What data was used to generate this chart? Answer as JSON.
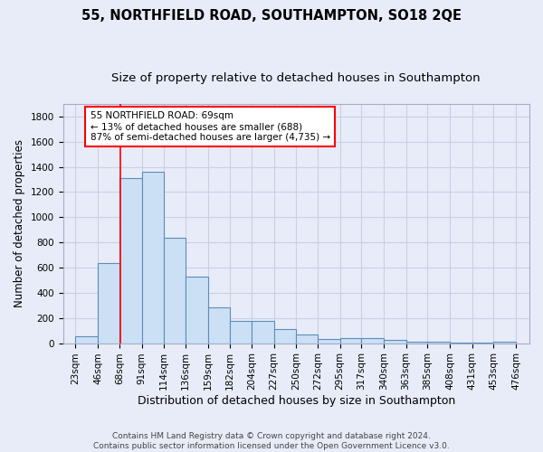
{
  "title": "55, NORTHFIELD ROAD, SOUTHAMPTON, SO18 2QE",
  "subtitle": "Size of property relative to detached houses in Southampton",
  "xlabel": "Distribution of detached houses by size in Southampton",
  "ylabel": "Number of detached properties",
  "footer_line1": "Contains HM Land Registry data © Crown copyright and database right 2024.",
  "footer_line2": "Contains public sector information licensed under the Open Government Licence v3.0.",
  "annotation_line1": "55 NORTHFIELD ROAD: 69sqm",
  "annotation_line2": "← 13% of detached houses are smaller (688)",
  "annotation_line3": "87% of semi-detached houses are larger (4,735) →",
  "bar_left_edges": [
    23,
    46,
    68,
    91,
    114,
    136,
    159,
    182,
    204,
    227,
    250,
    272,
    295,
    317,
    340,
    363,
    385,
    408,
    431,
    453
  ],
  "bar_widths": [
    23,
    22,
    23,
    23,
    22,
    23,
    23,
    22,
    23,
    23,
    22,
    23,
    22,
    23,
    23,
    22,
    23,
    23,
    22,
    23
  ],
  "bar_heights": [
    55,
    635,
    1310,
    1360,
    835,
    525,
    285,
    175,
    175,
    110,
    70,
    35,
    40,
    40,
    25,
    15,
    10,
    5,
    5,
    15
  ],
  "bar_color": "#cce0f5",
  "bar_edge_color": "#5b8db8",
  "red_line_x": 69,
  "ylim": [
    0,
    1900
  ],
  "xlim": [
    10,
    490
  ],
  "xtick_labels": [
    "23sqm",
    "46sqm",
    "68sqm",
    "91sqm",
    "114sqm",
    "136sqm",
    "159sqm",
    "182sqm",
    "204sqm",
    "227sqm",
    "250sqm",
    "272sqm",
    "295sqm",
    "317sqm",
    "340sqm",
    "363sqm",
    "385sqm",
    "408sqm",
    "431sqm",
    "453sqm",
    "476sqm"
  ],
  "xtick_positions": [
    23,
    46,
    68,
    91,
    114,
    136,
    159,
    182,
    204,
    227,
    250,
    272,
    295,
    317,
    340,
    363,
    385,
    408,
    431,
    453,
    476
  ],
  "grid_color": "#c8d0e8",
  "background_color": "#e8ecf8",
  "title_fontsize": 10.5,
  "subtitle_fontsize": 9.5,
  "ylabel_fontsize": 8.5,
  "xlabel_fontsize": 9,
  "tick_fontsize": 7.5,
  "ann_fontsize": 7.5,
  "footer_fontsize": 6.5
}
